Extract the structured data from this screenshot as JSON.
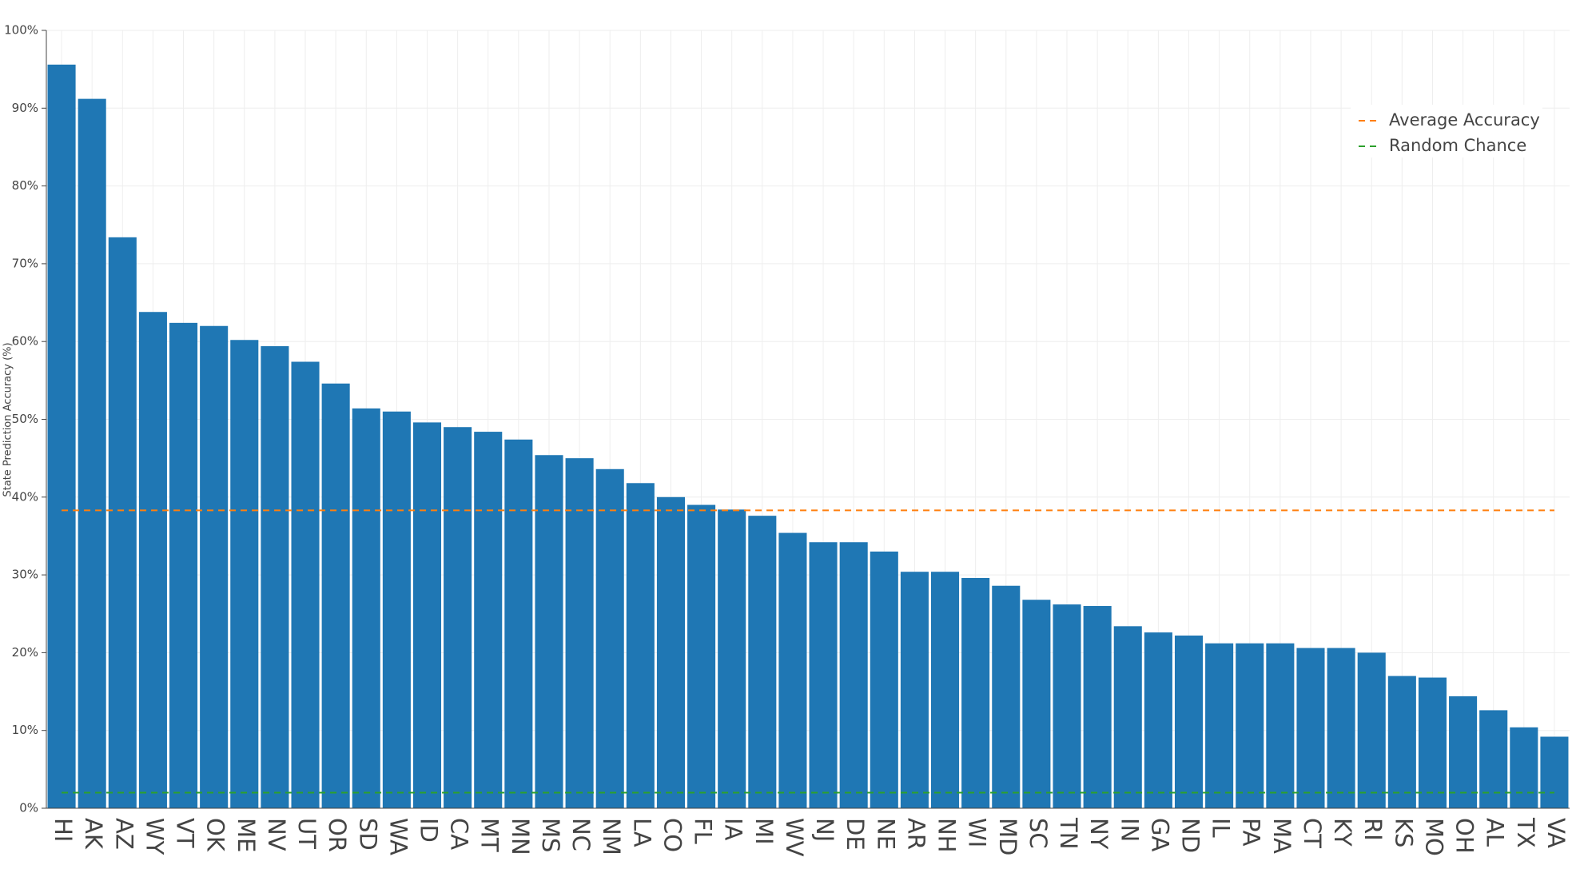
{
  "chart_data": {
    "type": "bar",
    "y_label": "State Prediction Accuracy (%)",
    "categories": [
      "HI",
      "AK",
      "AZ",
      "WY",
      "VT",
      "OK",
      "ME",
      "NV",
      "UT",
      "OR",
      "SD",
      "WA",
      "ID",
      "CA",
      "MT",
      "MN",
      "MS",
      "NC",
      "NM",
      "LA",
      "CO",
      "FL",
      "IA",
      "MI",
      "WV",
      "NJ",
      "DE",
      "NE",
      "AR",
      "NH",
      "WI",
      "MD",
      "SC",
      "TN",
      "NY",
      "IN",
      "GA",
      "ND",
      "IL",
      "PA",
      "MA",
      "CT",
      "KY",
      "RI",
      "KS",
      "MO",
      "OH",
      "AL",
      "TX",
      "VA"
    ],
    "values": [
      95.6,
      91.2,
      73.4,
      63.8,
      62.4,
      62.0,
      60.2,
      59.4,
      57.4,
      54.6,
      51.4,
      51.0,
      49.6,
      49.0,
      48.4,
      47.4,
      45.4,
      45.0,
      43.6,
      41.8,
      40.0,
      39.0,
      38.4,
      37.6,
      35.4,
      34.2,
      34.2,
      33.0,
      30.4,
      30.4,
      29.6,
      28.6,
      26.8,
      26.2,
      26.0,
      23.4,
      22.6,
      22.2,
      21.2,
      21.2,
      21.2,
      20.6,
      20.6,
      20.0,
      17.0,
      16.8,
      14.4,
      12.6,
      10.4,
      9.2
    ],
    "color": "#1f77b4",
    "reference_lines": [
      {
        "name": "Average Accuracy",
        "value": 38.3,
        "color": "#ff7f0e"
      },
      {
        "name": "Random Chance",
        "value": 2.0,
        "color": "#2ca02c"
      }
    ],
    "ylim": [
      0,
      100
    ],
    "yticks": [
      {
        "value": 0,
        "label": "0%"
      },
      {
        "value": 10,
        "label": "10%"
      },
      {
        "value": 20,
        "label": "20%"
      },
      {
        "value": 30,
        "label": "30%"
      },
      {
        "value": 40,
        "label": "40%"
      },
      {
        "value": 50,
        "label": "50%"
      },
      {
        "value": 60,
        "label": "60%"
      },
      {
        "value": 70,
        "label": "70%"
      },
      {
        "value": 80,
        "label": "80%"
      },
      {
        "value": 90,
        "label": "90%"
      },
      {
        "value": 100,
        "label": "100%"
      }
    ],
    "grid": true,
    "legend": "top-right"
  }
}
